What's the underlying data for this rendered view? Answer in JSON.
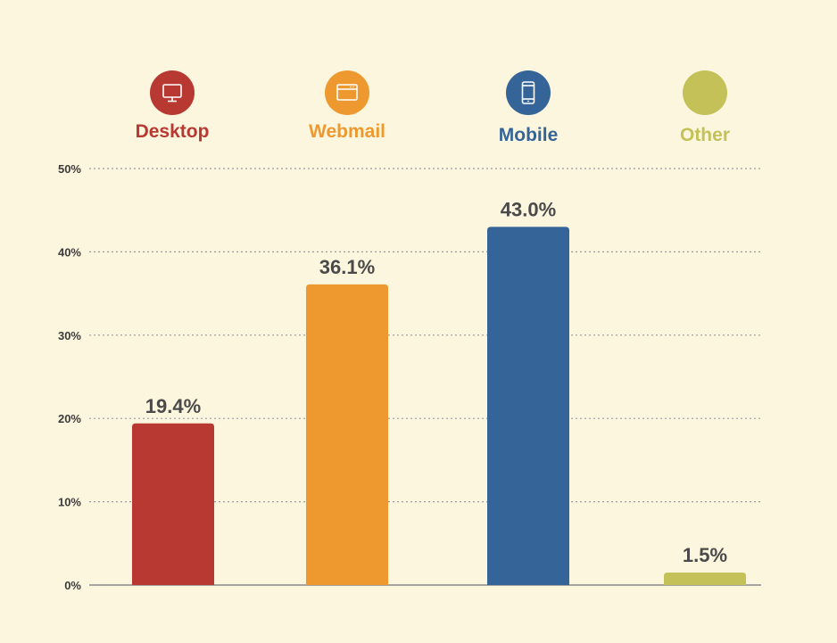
{
  "chart_data": {
    "type": "bar",
    "categories": [
      "Desktop",
      "Webmail",
      "Mobile",
      "Other"
    ],
    "values": [
      19.4,
      36.1,
      43.0,
      1.5
    ],
    "value_labels": [
      "19.4%",
      "36.1%",
      "43.0%",
      "1.5%"
    ],
    "colors": [
      "#b83832",
      "#ee9930",
      "#346498",
      "#c3c157"
    ],
    "icons": [
      "desktop-monitor-icon",
      "browser-window-icon",
      "mobile-phone-icon",
      ""
    ],
    "ylim": [
      0,
      50
    ],
    "yticks": [
      0,
      10,
      20,
      30,
      40,
      50
    ],
    "ytick_labels": [
      "0%",
      "10%",
      "20%",
      "30%",
      "40%",
      "50%"
    ],
    "grid": true,
    "legend_placement": "top"
  }
}
